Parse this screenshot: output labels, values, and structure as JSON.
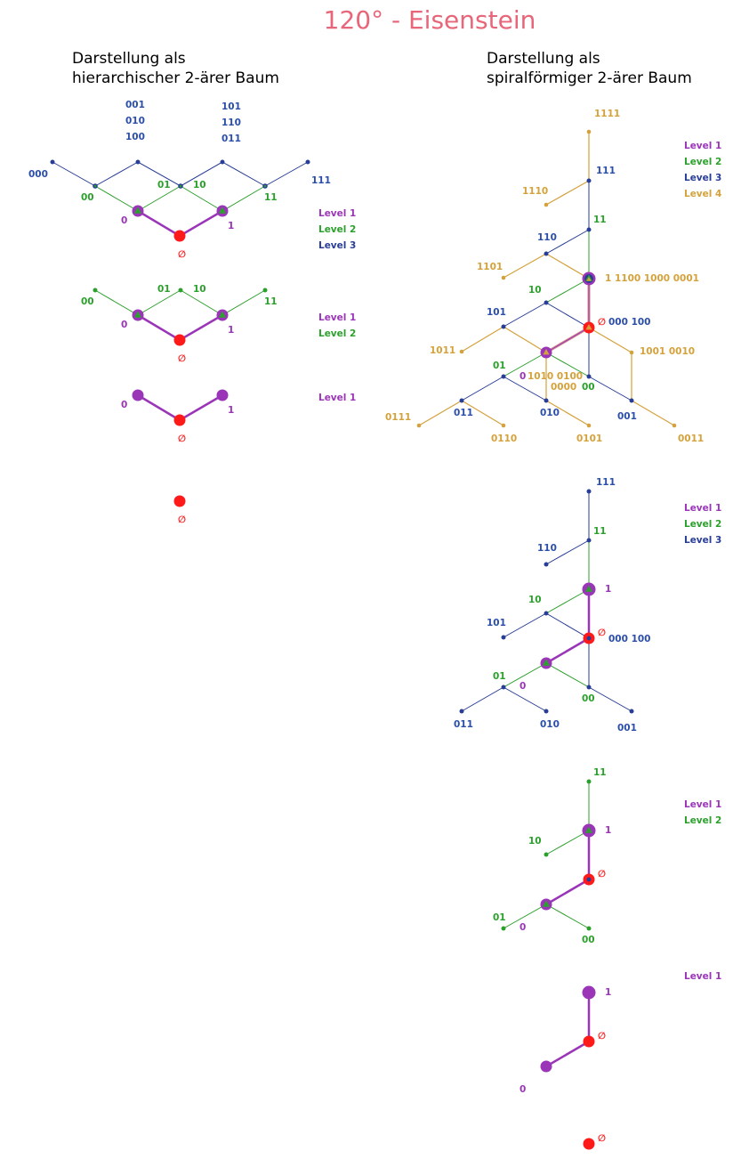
{
  "title": "120° - Eisenstein",
  "subtitle_left": [
    "Darstellung als",
    "hierarchischer 2-ärer Baum"
  ],
  "subtitle_right": [
    "Darstellung als",
    "spiralförmiger 2-ärer Baum"
  ],
  "colors": {
    "title": "#e8667a",
    "root": "#ff1a1a",
    "level1": "#9b35b8",
    "level2": "#2ca02c",
    "level3": "#283d96",
    "level3_text": "#2b4ea8",
    "level4": "#d4a23c",
    "grey": "#999999"
  },
  "legend_labels": [
    "Level 1",
    "Level 2",
    "Level 3",
    "Level 4"
  ],
  "labels": {
    "root": "∅",
    "l1": [
      "0",
      "1"
    ],
    "l2": [
      "00",
      "01",
      "10",
      "11"
    ],
    "l3": [
      "000",
      "001",
      "010",
      "011",
      "100",
      "101",
      "110",
      "111"
    ],
    "l4": [
      "0000",
      "0001",
      "0010",
      "0011",
      "0100",
      "0101",
      "0110",
      "0111",
      "1000",
      "1001",
      "1010",
      "1011",
      "1100",
      "1101",
      "1110",
      "1111"
    ]
  }
}
